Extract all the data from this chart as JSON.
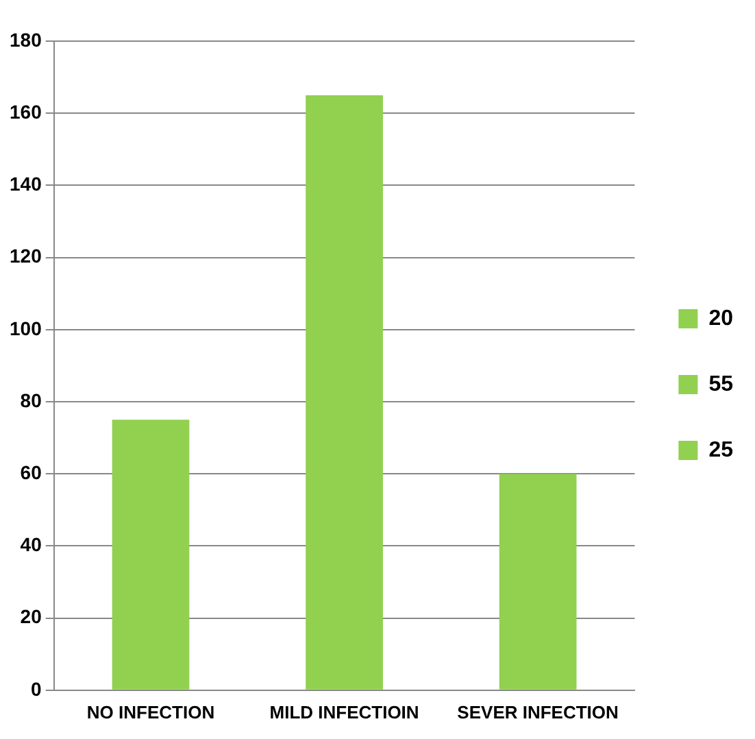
{
  "chart_data": {
    "type": "bar",
    "categories": [
      "NO INFECTION",
      "MILD INFECTIOIN",
      "SEVER INFECTION"
    ],
    "series": [
      {
        "name": "20",
        "color": "#92d050",
        "values": [
          75,
          null,
          null
        ]
      },
      {
        "name": "55",
        "color": "#92d050",
        "values": [
          null,
          165,
          null
        ]
      },
      {
        "name": "25",
        "color": "#92d050",
        "values": [
          null,
          null,
          60
        ]
      }
    ],
    "ylim": [
      0,
      180
    ],
    "yticks": [
      0,
      20,
      40,
      60,
      80,
      100,
      120,
      140,
      160,
      180
    ],
    "grid": "y",
    "legend": "right"
  }
}
